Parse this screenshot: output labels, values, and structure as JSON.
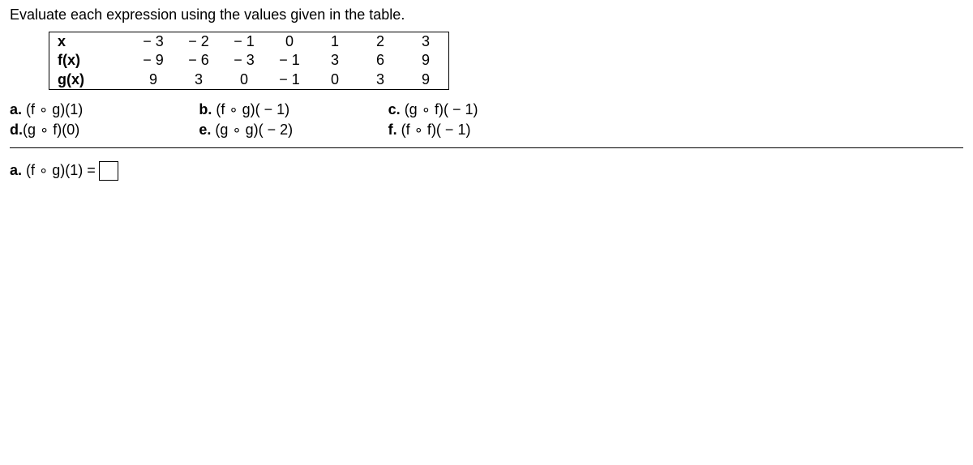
{
  "instruction": "Evaluate each expression using the values given in the table.",
  "table": {
    "row_headers": [
      "x",
      "f(x)",
      "g(x)"
    ],
    "rows": [
      [
        "− 3",
        "− 2",
        "− 1",
        "0",
        "1",
        "2",
        "3"
      ],
      [
        "− 9",
        "− 6",
        "− 3",
        "− 1",
        "3",
        "6",
        "9"
      ],
      [
        "9",
        "3",
        "0",
        "− 1",
        "0",
        "3",
        "9"
      ]
    ]
  },
  "parts": {
    "col1": [
      {
        "label": "a.",
        "expr": "(f ∘ g)(1)"
      },
      {
        "label": "d.",
        "expr": "(g ∘ f)(0)"
      }
    ],
    "col2": [
      {
        "label": "b.",
        "expr": "(f ∘ g)( − 1)"
      },
      {
        "label": "e.",
        "expr": "(g ∘ g)( − 2)"
      }
    ],
    "col3": [
      {
        "label": "c.",
        "expr": "(g ∘ f)( − 1)"
      },
      {
        "label": "f.",
        "expr": "(f ∘ f)( − 1)"
      }
    ]
  },
  "answer": {
    "label": "a.",
    "expr": "(f ∘ g)(1) ="
  }
}
